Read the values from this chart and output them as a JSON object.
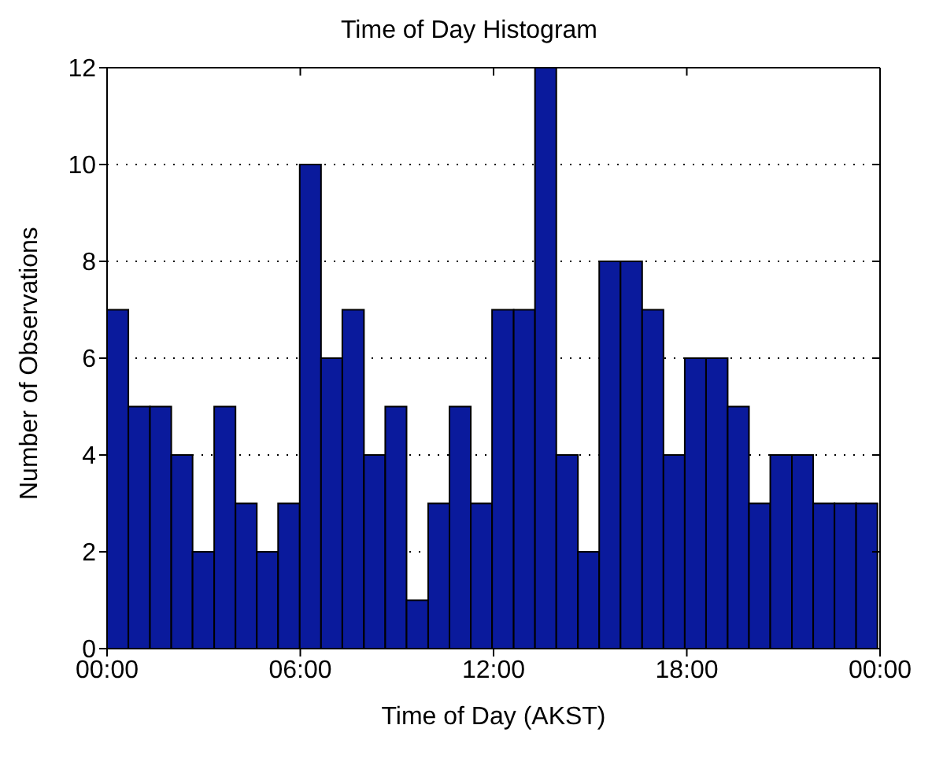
{
  "chart_data": {
    "type": "histogram",
    "title": "Time of Day Histogram",
    "xlabel": "Time of Day (AKST)",
    "ylabel": "Number of Observations",
    "bins": [
      0,
      0.66,
      1.33,
      1.99,
      2.65,
      3.32,
      3.98,
      4.64,
      5.3,
      5.97,
      6.63,
      7.29,
      7.96,
      8.62,
      9.28,
      9.95,
      10.61,
      11.27,
      11.93,
      12.6,
      13.26,
      13.92,
      14.59,
      15.25,
      15.91,
      16.58,
      17.24,
      17.9,
      18.56,
      19.23,
      19.89,
      20.55,
      21.22,
      21.88,
      22.54,
      23.21,
      23.87
    ],
    "values": [
      7,
      5,
      5,
      4,
      2,
      5,
      3,
      2,
      3,
      10,
      6,
      7,
      4,
      5,
      1,
      3,
      5,
      3,
      7,
      7,
      12,
      4,
      2,
      8,
      8,
      7,
      4,
      6,
      6,
      5,
      3,
      4,
      4,
      3,
      3,
      3
    ],
    "color": "#0a1a9c",
    "xlim": [
      0,
      24
    ],
    "xticks": [
      {
        "value": 0,
        "label": "00:00"
      },
      {
        "value": 6,
        "label": "06:00"
      },
      {
        "value": 12,
        "label": "12:00"
      },
      {
        "value": 18,
        "label": "18:00"
      },
      {
        "value": 24,
        "label": "00:00"
      }
    ],
    "ylim": [
      0,
      12
    ],
    "yticks": [
      0,
      2,
      4,
      6,
      8,
      10,
      12
    ],
    "grid": "y"
  }
}
